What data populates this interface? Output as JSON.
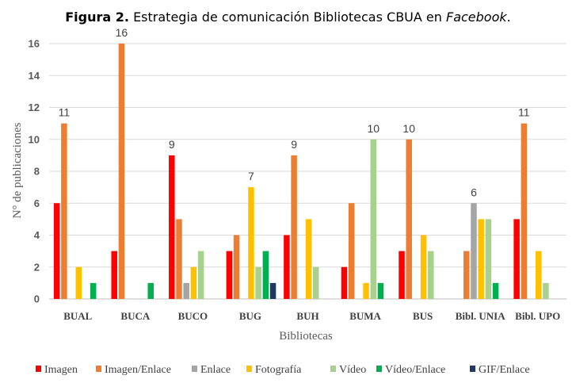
{
  "figure": {
    "title_prefix": "Figura 2.",
    "title_main": " Estrategia de comunicación Bibliotecas CBUA en ",
    "title_italic": "Facebook",
    "title_end": "."
  },
  "chart_data": {
    "type": "bar",
    "xlabel": "Bibliotecas",
    "ylabel": "N° de publicaciones",
    "ylim": [
      0,
      16
    ],
    "yticks": [
      0,
      2,
      4,
      6,
      8,
      10,
      12,
      14,
      16
    ],
    "grid": true,
    "legend_position": "bottom",
    "categories": [
      "BUAL",
      "BUCA",
      "BUCO",
      "BUG",
      "BUH",
      "BUMA",
      "BUS",
      "Bibl. UNIA",
      "Bibl. UPO"
    ],
    "series": [
      {
        "name": "Imagen",
        "color": "#ff0000",
        "values": [
          6,
          3,
          9,
          3,
          4,
          2,
          3,
          0,
          5
        ]
      },
      {
        "name": "Imagen/Enlace",
        "color": "#ed7d31",
        "values": [
          11,
          16,
          5,
          4,
          9,
          6,
          10,
          3,
          11
        ]
      },
      {
        "name": "Enlace",
        "color": "#a5a5a5",
        "values": [
          0,
          0,
          1,
          0,
          0,
          0,
          0,
          6,
          0
        ]
      },
      {
        "name": "Fotografía",
        "color": "#ffc000",
        "values": [
          2,
          0,
          2,
          7,
          5,
          1,
          4,
          5,
          3
        ]
      },
      {
        "name": "Vídeo",
        "color": "#a9d18e",
        "values": [
          0,
          0,
          3,
          2,
          2,
          10,
          3,
          5,
          1
        ]
      },
      {
        "name": "Vídeo/Enlace",
        "color": "#00b050",
        "values": [
          1,
          1,
          0,
          3,
          0,
          1,
          0,
          1,
          0
        ]
      },
      {
        "name": "GIF/Enlace",
        "color": "#203864",
        "values": [
          0,
          0,
          0,
          1,
          0,
          0,
          0,
          0,
          0
        ]
      }
    ],
    "annotations": [
      {
        "category": "BUAL",
        "series": "Imagen/Enlace",
        "label": "11"
      },
      {
        "category": "BUCA",
        "series": "Imagen/Enlace",
        "label": "16"
      },
      {
        "category": "BUCO",
        "series": "Imagen",
        "label": "9"
      },
      {
        "category": "BUG",
        "series": "Fotografía",
        "label": "7"
      },
      {
        "category": "BUH",
        "series": "Imagen/Enlace",
        "label": "9"
      },
      {
        "category": "BUMA",
        "series": "Vídeo",
        "label": "10"
      },
      {
        "category": "BUS",
        "series": "Imagen/Enlace",
        "label": "10"
      },
      {
        "category": "Bibl. UNIA",
        "series": "Enlace",
        "label": "6"
      },
      {
        "category": "Bibl. UPO",
        "series": "Imagen/Enlace",
        "label": "11"
      }
    ]
  }
}
